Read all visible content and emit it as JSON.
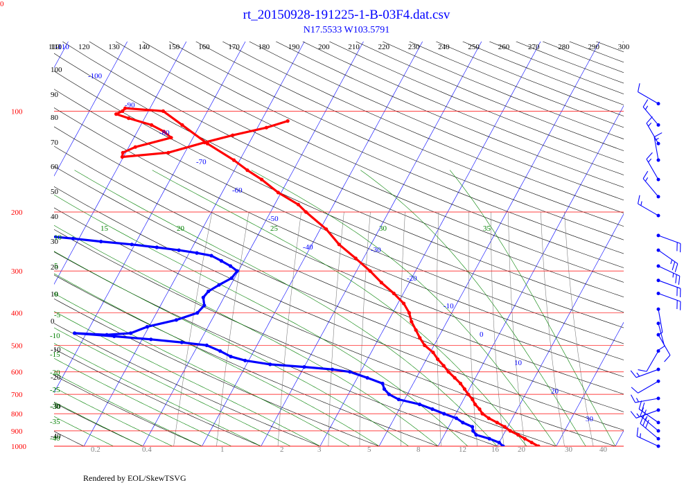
{
  "corner_label": "0",
  "chart_data": {
    "type": "skew-t log-p sounding diagram",
    "title": "rt_20150928-191225-1-B-03F4.dat.csv",
    "subtitle": "N17.5533 W103.5791",
    "footer": "Rendered by EOL/SkewTSVG",
    "pressure_range_hPa": [
      1000,
      62
    ],
    "pressure_ticks": [
      "100",
      "200",
      "300",
      "400",
      "500",
      "600",
      "700",
      "800",
      "900",
      "1000"
    ],
    "top_axis_ticks": [
      "110",
      "120",
      "130",
      "140",
      "150",
      "160",
      "170",
      "180",
      "190",
      "200",
      "210",
      "220",
      "230",
      "240",
      "250",
      "260",
      "270",
      "280",
      "290",
      "300"
    ],
    "left_axis_black_labels": [
      "110",
      "100",
      "90",
      "80",
      "70",
      "60",
      "50",
      "40",
      "30",
      "20",
      "10",
      "0",
      "-10",
      "-20",
      "-30",
      "-40"
    ],
    "isotherm_labels_C": [
      "-110",
      "-100",
      "-90",
      "-80",
      "-70",
      "-60",
      "-50",
      "-40",
      "-30",
      "-20",
      "-10",
      "0",
      "10",
      "20",
      "30"
    ],
    "moist_adiabat_labels": [
      "15",
      "20",
      "25",
      "30",
      "35",
      "10",
      "5",
      "0",
      "-5",
      "-10",
      "-15",
      "-20",
      "-25",
      "-30",
      "-35",
      "-40"
    ],
    "mixing_ratio_labels": [
      "0.2",
      "0.4",
      "1",
      "2",
      "3",
      "5",
      "8",
      "12",
      "16",
      "20",
      "30",
      "40"
    ],
    "series": [
      {
        "name": "Temperature",
        "color": "#ff0000",
        "unit": "degC",
        "points": [
          [
            1000,
            27.0
          ],
          [
            975,
            25.5
          ],
          [
            950,
            24.0
          ],
          [
            925,
            22.5
          ],
          [
            900,
            20.8
          ],
          [
            875,
            19.5
          ],
          [
            850,
            17.8
          ],
          [
            825,
            16.0
          ],
          [
            800,
            14.5
          ],
          [
            775,
            13.6
          ],
          [
            750,
            12.4
          ],
          [
            725,
            11.5
          ],
          [
            700,
            10.3
          ],
          [
            675,
            9.2
          ],
          [
            650,
            8.0
          ],
          [
            625,
            6.5
          ],
          [
            600,
            4.9
          ],
          [
            575,
            3.5
          ],
          [
            550,
            1.9
          ],
          [
            525,
            0.5
          ],
          [
            500,
            -1.6
          ],
          [
            475,
            -3.1
          ],
          [
            450,
            -4.5
          ],
          [
            425,
            -6.0
          ],
          [
            400,
            -7.2
          ],
          [
            375,
            -9.0
          ],
          [
            350,
            -11.6
          ],
          [
            325,
            -14.7
          ],
          [
            300,
            -17.7
          ],
          [
            275,
            -21.3
          ],
          [
            250,
            -25.4
          ],
          [
            225,
            -29.0
          ],
          [
            200,
            -34.0
          ],
          [
            190,
            -36.0
          ],
          [
            175,
            -40.5
          ],
          [
            160,
            -44.5
          ],
          [
            150,
            -47.8
          ],
          [
            140,
            -51.0
          ],
          [
            125,
            -57.0
          ],
          [
            110,
            -63.0
          ],
          [
            100,
            -67.5
          ],
          [
            98,
            -74.2
          ],
          [
            100,
            -74.4
          ],
          [
            102,
            -75.2
          ],
          [
            105,
            -72.7
          ],
          [
            110,
            -68.2
          ],
          [
            115,
            -65.5
          ],
          [
            120,
            -63.7
          ],
          [
            128,
            -68.9
          ],
          [
            133,
            -70.5
          ],
          [
            137,
            -70.2
          ],
          [
            133,
            -62.8
          ],
          [
            124,
            -57.6
          ],
          [
            118,
            -53.5
          ],
          [
            112,
            -48.5
          ],
          [
            107,
            -45.5
          ]
        ]
      },
      {
        "name": "Dew point",
        "color": "#0000ff",
        "unit": "degC",
        "points": [
          [
            1000,
            21.0
          ],
          [
            975,
            20.0
          ],
          [
            950,
            18.0
          ],
          [
            925,
            15.4
          ],
          [
            900,
            14.5
          ],
          [
            875,
            14.0
          ],
          [
            850,
            12.0
          ],
          [
            825,
            10.5
          ],
          [
            800,
            8.0
          ],
          [
            775,
            5.6
          ],
          [
            750,
            3.0
          ],
          [
            725,
            -1.0
          ],
          [
            700,
            -3.1
          ],
          [
            675,
            -4.4
          ],
          [
            650,
            -5.2
          ],
          [
            625,
            -8.3
          ],
          [
            600,
            -11.8
          ],
          [
            590,
            -15.0
          ],
          [
            580,
            -20.0
          ],
          [
            570,
            -26.0
          ],
          [
            555,
            -30.6
          ],
          [
            540,
            -33.4
          ],
          [
            520,
            -35.7
          ],
          [
            500,
            -38.5
          ],
          [
            490,
            -43.0
          ],
          [
            480,
            -48.5
          ],
          [
            470,
            -55.0
          ],
          [
            460,
            -62.0
          ],
          [
            465,
            -56.4
          ],
          [
            460,
            -52.5
          ],
          [
            440,
            -50.3
          ],
          [
            420,
            -46.0
          ],
          [
            400,
            -43.1
          ],
          [
            380,
            -42.6
          ],
          [
            360,
            -43.5
          ],
          [
            345,
            -43.2
          ],
          [
            330,
            -42.0
          ],
          [
            315,
            -40.5
          ],
          [
            300,
            -40.2
          ],
          [
            290,
            -41.8
          ],
          [
            280,
            -43.8
          ],
          [
            270,
            -46.0
          ],
          [
            265,
            -48.7
          ],
          [
            260,
            -52.0
          ],
          [
            255,
            -56.0
          ],
          [
            250,
            -60.5
          ],
          [
            245,
            -66.0
          ],
          [
            240,
            -71.0
          ],
          [
            235,
            -77.0
          ],
          [
            230,
            -84.0
          ],
          [
            225,
            -92.0
          ],
          [
            220,
            -100.0
          ],
          [
            215,
            -108.0
          ],
          [
            210,
            -113.0
          ]
        ]
      }
    ],
    "wind_barbs": [
      {
        "p": 1000,
        "speed": 15,
        "dir": 295
      },
      {
        "p": 950,
        "speed": 30,
        "dir": 310
      },
      {
        "p": 900,
        "speed": 25,
        "dir": 310
      },
      {
        "p": 850,
        "speed": 20,
        "dir": 305
      },
      {
        "p": 780,
        "speed": 15,
        "dir": 250
      },
      {
        "p": 720,
        "speed": 15,
        "dir": 260
      },
      {
        "p": 640,
        "speed": 10,
        "dir": 240
      },
      {
        "p": 590,
        "speed": 15,
        "dir": 250
      },
      {
        "p": 520,
        "speed": 10,
        "dir": 210
      },
      {
        "p": 465,
        "speed": 10,
        "dir": 150
      },
      {
        "p": 430,
        "speed": 10,
        "dir": 165
      },
      {
        "p": 390,
        "speed": 5,
        "dir": 170
      },
      {
        "p": 350,
        "speed": 20,
        "dir": 110
      },
      {
        "p": 320,
        "speed": 20,
        "dir": 110
      },
      {
        "p": 290,
        "speed": 25,
        "dir": 115
      },
      {
        "p": 260,
        "speed": 25,
        "dir": 125
      },
      {
        "p": 235,
        "speed": 20,
        "dir": 110
      },
      {
        "p": 205,
        "speed": 15,
        "dir": 300
      },
      {
        "p": 180,
        "speed": 15,
        "dir": 320
      },
      {
        "p": 160,
        "speed": 15,
        "dir": 330
      },
      {
        "p": 140,
        "speed": 15,
        "dir": 350
      },
      {
        "p": 125,
        "speed": 15,
        "dir": 330
      },
      {
        "p": 110,
        "speed": 15,
        "dir": 320
      },
      {
        "p": 95,
        "speed": 10,
        "dir": 300
      }
    ],
    "colors": {
      "isobar": "#ff0000",
      "isotherm": "#0000ff",
      "dry_adiabat": "#000000",
      "moist_adiabat": "#008000",
      "mixing_ratio": "#808080",
      "wind_barb": "#0000ff"
    }
  }
}
